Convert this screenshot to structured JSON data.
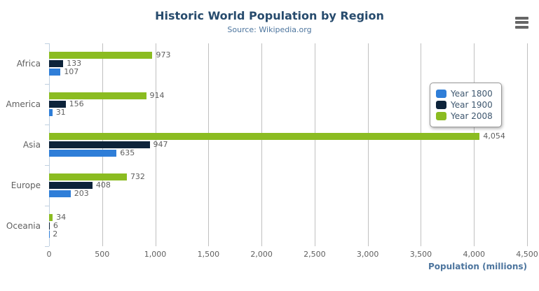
{
  "chart_data": {
    "type": "bar",
    "orientation": "horizontal",
    "title": "Historic World Population by Region",
    "subtitle": "Source: Wikipedia.org",
    "categories": [
      "Africa",
      "America",
      "Asia",
      "Europe",
      "Oceania"
    ],
    "series": [
      {
        "name": "Year 1800",
        "color": "#2f7ed8",
        "values": [
          107,
          31,
          635,
          203,
          2
        ]
      },
      {
        "name": "Year 1900",
        "color": "#0d233a",
        "values": [
          133,
          156,
          947,
          408,
          6
        ]
      },
      {
        "name": "Year 2008",
        "color": "#8bbc21",
        "values": [
          973,
          914,
          4054,
          732,
          34
        ]
      }
    ],
    "series_display_order_top_to_bottom": [
      "Year 2008",
      "Year 1900",
      "Year 1800"
    ],
    "data_labels": [
      "4,054",
      "973",
      "947",
      "914",
      "732",
      "635",
      "408",
      "203",
      "156",
      "133",
      "107",
      "34",
      "31",
      "6",
      "2"
    ],
    "xlabel": "Population (millions)",
    "ylabel": "",
    "xlim": [
      0,
      4500
    ],
    "xticks": [
      0,
      500,
      1000,
      1500,
      2000,
      2500,
      3000,
      3500,
      4000,
      4500
    ],
    "xtick_labels": [
      "0",
      "500",
      "1,000",
      "1,500",
      "2,000",
      "2,500",
      "3,000",
      "3,500",
      "4,000",
      "4,500"
    ],
    "grid": true,
    "legend_position": "right-middle",
    "legend_items": [
      "Year 1800",
      "Year 1900",
      "Year 2008"
    ]
  },
  "export_menu": {
    "icon": "hamburger-icon"
  },
  "colors": {
    "title": "#274b6d",
    "subtitle": "#4d759e",
    "axis_title": "#4d759e",
    "axis_labels": "#606060",
    "data_labels": "#606060",
    "legend_text": "#3E576F",
    "grid_line": "#C0C0C0",
    "axis_line": "#C0D0E0",
    "legend_border": "#999999",
    "export_icon": "#666666",
    "background": "#FFFFFF"
  }
}
